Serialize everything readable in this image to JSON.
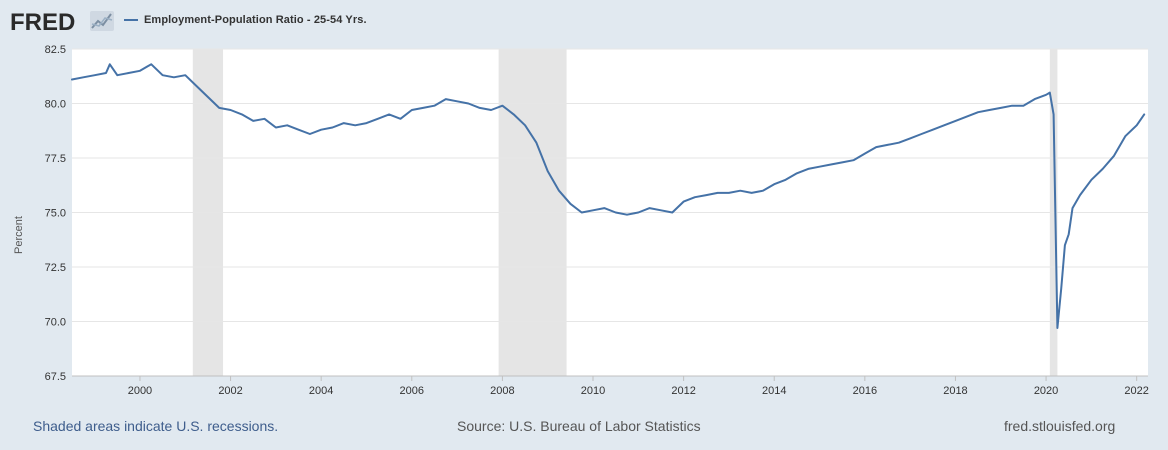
{
  "logo": {
    "text": "FRED",
    "icon": "fred-chart-logo-icon"
  },
  "colors": {
    "background": "#e1e9f0",
    "plot_bg": "#ffffff",
    "series": "#4572a7",
    "recession": "#e5e5e5",
    "grid": "#e6e6e6"
  },
  "footer": {
    "recession_note": "Shaded areas indicate U.S. recessions.",
    "source": "Source: U.S. Bureau of Labor Statistics",
    "site": "fred.stlouisfed.org"
  },
  "chart_data": {
    "type": "line",
    "title": "",
    "xlabel": "",
    "ylabel": "Percent",
    "xlim": [
      1998.5,
      2022.25
    ],
    "ylim": [
      67.5,
      82.5
    ],
    "grid": true,
    "legend": "top-left",
    "x_ticks": [
      "2000",
      "2002",
      "2004",
      "2006",
      "2008",
      "2010",
      "2012",
      "2014",
      "2016",
      "2018",
      "2020",
      "2022"
    ],
    "y_ticks": [
      "67.5",
      "70.0",
      "72.5",
      "75.0",
      "77.5",
      "80.0",
      "82.5"
    ],
    "recessions": [
      {
        "start": "2001-03",
        "end": "2001-11"
      },
      {
        "start": "2007-12",
        "end": "2009-06"
      },
      {
        "start": "2020-02",
        "end": "2020-04"
      }
    ],
    "series": [
      {
        "name": "Employment-Population Ratio - 25-54 Yrs.",
        "x": [
          "1998-07",
          "1998-10",
          "1999-01",
          "1999-04",
          "1999-05",
          "1999-07",
          "1999-10",
          "2000-01",
          "2000-03",
          "2000-04",
          "2000-07",
          "2000-10",
          "2001-01",
          "2001-04",
          "2001-07",
          "2001-10",
          "2002-01",
          "2002-04",
          "2002-07",
          "2002-10",
          "2003-01",
          "2003-04",
          "2003-07",
          "2003-10",
          "2004-01",
          "2004-04",
          "2004-07",
          "2004-10",
          "2005-01",
          "2005-04",
          "2005-07",
          "2005-10",
          "2006-01",
          "2006-04",
          "2006-07",
          "2006-10",
          "2007-01",
          "2007-04",
          "2007-07",
          "2007-10",
          "2008-01",
          "2008-04",
          "2008-07",
          "2008-10",
          "2009-01",
          "2009-04",
          "2009-07",
          "2009-10",
          "2010-01",
          "2010-04",
          "2010-07",
          "2010-10",
          "2011-01",
          "2011-04",
          "2011-07",
          "2011-10",
          "2012-01",
          "2012-04",
          "2012-07",
          "2012-10",
          "2013-01",
          "2013-04",
          "2013-07",
          "2013-10",
          "2014-01",
          "2014-04",
          "2014-07",
          "2014-10",
          "2015-01",
          "2015-04",
          "2015-07",
          "2015-10",
          "2016-01",
          "2016-04",
          "2016-07",
          "2016-10",
          "2017-01",
          "2017-04",
          "2017-07",
          "2017-10",
          "2018-01",
          "2018-04",
          "2018-07",
          "2018-10",
          "2019-01",
          "2019-04",
          "2019-07",
          "2019-10",
          "2020-01",
          "2020-02",
          "2020-03",
          "2020-04",
          "2020-05",
          "2020-06",
          "2020-07",
          "2020-08",
          "2020-10",
          "2021-01",
          "2021-04",
          "2021-07",
          "2021-10",
          "2022-01",
          "2022-03"
        ],
        "values": [
          81.1,
          81.2,
          81.3,
          81.4,
          81.8,
          81.3,
          81.4,
          81.5,
          81.7,
          81.8,
          81.3,
          81.2,
          81.3,
          80.8,
          80.3,
          79.8,
          79.7,
          79.5,
          79.2,
          79.3,
          78.9,
          79.0,
          78.8,
          78.6,
          78.8,
          78.9,
          79.1,
          79.0,
          79.1,
          79.3,
          79.5,
          79.3,
          79.7,
          79.8,
          79.9,
          80.2,
          80.1,
          80.0,
          79.8,
          79.7,
          79.9,
          79.5,
          79.0,
          78.2,
          76.9,
          76.0,
          75.4,
          75.0,
          75.1,
          75.2,
          75.0,
          74.9,
          75.0,
          75.2,
          75.1,
          75.0,
          75.5,
          75.7,
          75.8,
          75.9,
          75.9,
          76.0,
          75.9,
          76.0,
          76.3,
          76.5,
          76.8,
          77.0,
          77.1,
          77.2,
          77.3,
          77.4,
          77.7,
          78.0,
          78.1,
          78.2,
          78.4,
          78.6,
          78.8,
          79.0,
          79.2,
          79.4,
          79.6,
          79.7,
          79.8,
          79.9,
          79.9,
          80.2,
          80.4,
          80.5,
          79.5,
          69.7,
          71.5,
          73.5,
          74.0,
          75.2,
          75.8,
          76.5,
          77.0,
          77.6,
          78.5,
          79.0,
          79.5
        ]
      }
    ]
  }
}
